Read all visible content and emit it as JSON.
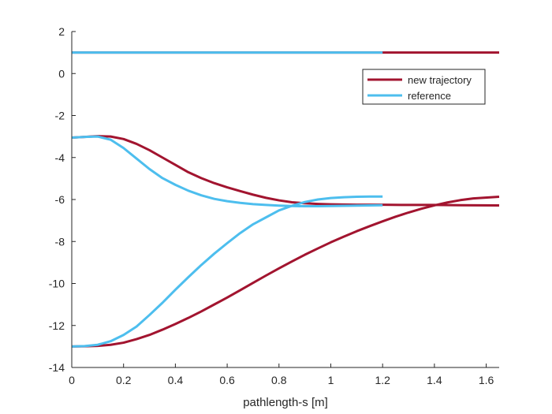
{
  "chart_data": {
    "type": "line",
    "title": "",
    "xlabel": "pathlength-s [m]",
    "ylabel": "",
    "xlim": [
      0,
      1.65
    ],
    "ylim": [
      -14,
      2
    ],
    "xticks": [
      0,
      0.2,
      0.4,
      0.6,
      0.8,
      1,
      1.2,
      1.4,
      1.6
    ],
    "xtick_labels": [
      "0",
      "0.2",
      "0.4",
      "0.6",
      "0.8",
      "1",
      "1.2",
      "1.4",
      "1.6"
    ],
    "yticks": [
      2,
      0,
      -2,
      -4,
      -6,
      -8,
      -10,
      -12,
      -14
    ],
    "ytick_labels": [
      "2",
      "0",
      "-2",
      "-4",
      "-6",
      "-8",
      "-10",
      "-12",
      "-14"
    ],
    "grid": false,
    "legend_position": "top-right",
    "legend": [
      {
        "label": "new trajectory",
        "color": "#A2142F"
      },
      {
        "label": "reference",
        "color": "#4DBEEE"
      }
    ],
    "series": [
      {
        "name": "new trajectory",
        "color": "#A2142F",
        "lines": [
          {
            "x": [
              0,
              1.65
            ],
            "y": [
              1,
              1
            ]
          },
          {
            "x": [
              0,
              0.05,
              0.1,
              0.15,
              0.2,
              0.25,
              0.3,
              0.35,
              0.4,
              0.45,
              0.5,
              0.55,
              0.6,
              0.65,
              0.7,
              0.75,
              0.8,
              0.85,
              0.9,
              0.95,
              1.0,
              1.05,
              1.1,
              1.15,
              1.2,
              1.3,
              1.4,
              1.5,
              1.65
            ],
            "y": [
              -3.05,
              -3.02,
              -2.98,
              -3.0,
              -3.12,
              -3.35,
              -3.65,
              -4.0,
              -4.35,
              -4.7,
              -4.98,
              -5.22,
              -5.42,
              -5.6,
              -5.77,
              -5.92,
              -6.04,
              -6.13,
              -6.18,
              -6.21,
              -6.23,
              -6.24,
              -6.25,
              -6.25,
              -6.25,
              -6.26,
              -6.26,
              -6.27,
              -6.28
            ]
          },
          {
            "x": [
              0,
              0.05,
              0.1,
              0.15,
              0.2,
              0.25,
              0.3,
              0.35,
              0.4,
              0.45,
              0.5,
              0.55,
              0.6,
              0.65,
              0.7,
              0.75,
              0.8,
              0.85,
              0.9,
              0.95,
              1.0,
              1.05,
              1.1,
              1.15,
              1.2,
              1.25,
              1.3,
              1.35,
              1.4,
              1.45,
              1.5,
              1.55,
              1.65
            ],
            "y": [
              -13.0,
              -12.99,
              -12.97,
              -12.92,
              -12.82,
              -12.65,
              -12.45,
              -12.2,
              -11.93,
              -11.64,
              -11.33,
              -11.0,
              -10.67,
              -10.32,
              -9.97,
              -9.62,
              -9.28,
              -8.95,
              -8.63,
              -8.33,
              -8.04,
              -7.77,
              -7.51,
              -7.27,
              -7.04,
              -6.82,
              -6.62,
              -6.44,
              -6.28,
              -6.14,
              -6.03,
              -5.95,
              -5.87
            ]
          }
        ]
      },
      {
        "name": "reference",
        "color": "#4DBEEE",
        "lines": [
          {
            "x": [
              0,
              1.2
            ],
            "y": [
              1,
              1
            ]
          },
          {
            "x": [
              0,
              0.05,
              0.1,
              0.15,
              0.2,
              0.25,
              0.3,
              0.35,
              0.4,
              0.45,
              0.5,
              0.55,
              0.6,
              0.65,
              0.7,
              0.75,
              0.8,
              0.85,
              0.9,
              0.95,
              1.0,
              1.05,
              1.1,
              1.15,
              1.2
            ],
            "y": [
              -3.05,
              -3.02,
              -3.0,
              -3.15,
              -3.55,
              -4.05,
              -4.55,
              -4.98,
              -5.3,
              -5.58,
              -5.8,
              -5.97,
              -6.08,
              -6.16,
              -6.22,
              -6.26,
              -6.29,
              -6.31,
              -6.32,
              -6.32,
              -6.31,
              -6.3,
              -6.29,
              -6.28,
              -6.27
            ]
          },
          {
            "x": [
              0,
              0.05,
              0.1,
              0.15,
              0.2,
              0.25,
              0.3,
              0.35,
              0.4,
              0.45,
              0.5,
              0.55,
              0.6,
              0.65,
              0.7,
              0.75,
              0.8,
              0.85,
              0.9,
              0.95,
              1.0,
              1.05,
              1.1,
              1.15,
              1.2
            ],
            "y": [
              -13.0,
              -12.98,
              -12.92,
              -12.75,
              -12.45,
              -12.05,
              -11.5,
              -10.92,
              -10.3,
              -9.7,
              -9.12,
              -8.58,
              -8.08,
              -7.6,
              -7.18,
              -6.85,
              -6.52,
              -6.3,
              -6.12,
              -6.0,
              -5.93,
              -5.89,
              -5.87,
              -5.86,
              -5.86
            ]
          }
        ]
      }
    ]
  }
}
